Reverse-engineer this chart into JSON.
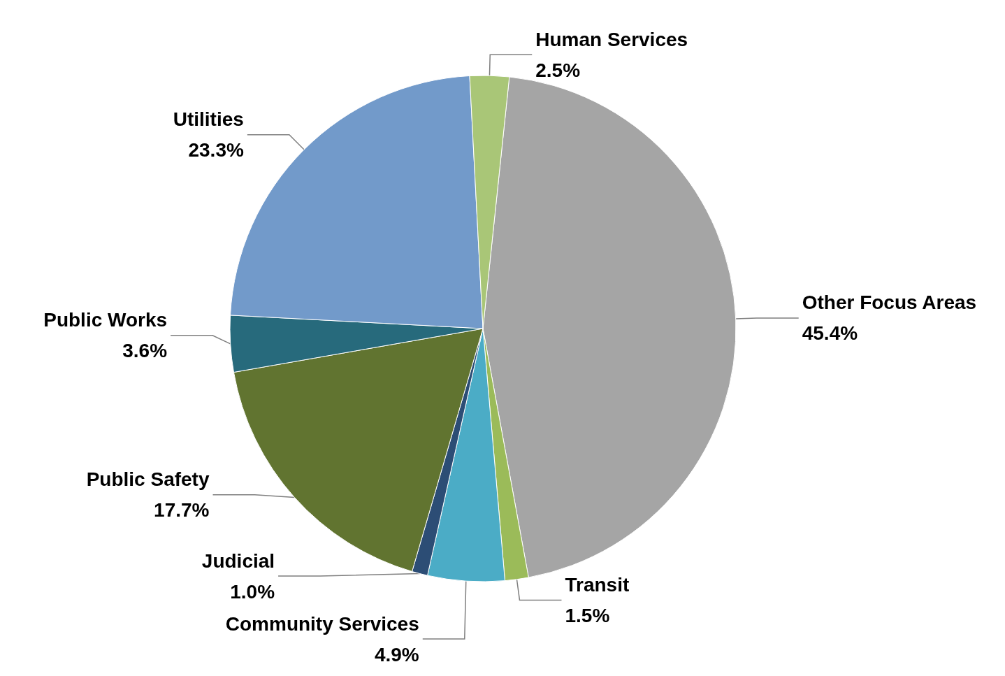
{
  "chart_data": {
    "type": "pie",
    "categories": [
      "Other Focus Areas",
      "Transit",
      "Community Services",
      "Judicial",
      "Public Safety",
      "Public Works",
      "Utilities",
      "Human Services"
    ],
    "values": [
      45.4,
      1.5,
      4.9,
      1.0,
      17.7,
      3.6,
      23.3,
      2.5
    ],
    "value_labels": [
      "45.4%",
      "1.5%",
      "4.9%",
      "1.0%",
      "17.7%",
      "3.6%",
      "23.3%",
      "2.5%"
    ],
    "colors": [
      "#a5a5a5",
      "#9bbb59",
      "#4bacc6",
      "#2c4d75",
      "#617430",
      "#276a7c",
      "#729aca",
      "#a9c677"
    ],
    "legend": false
  }
}
